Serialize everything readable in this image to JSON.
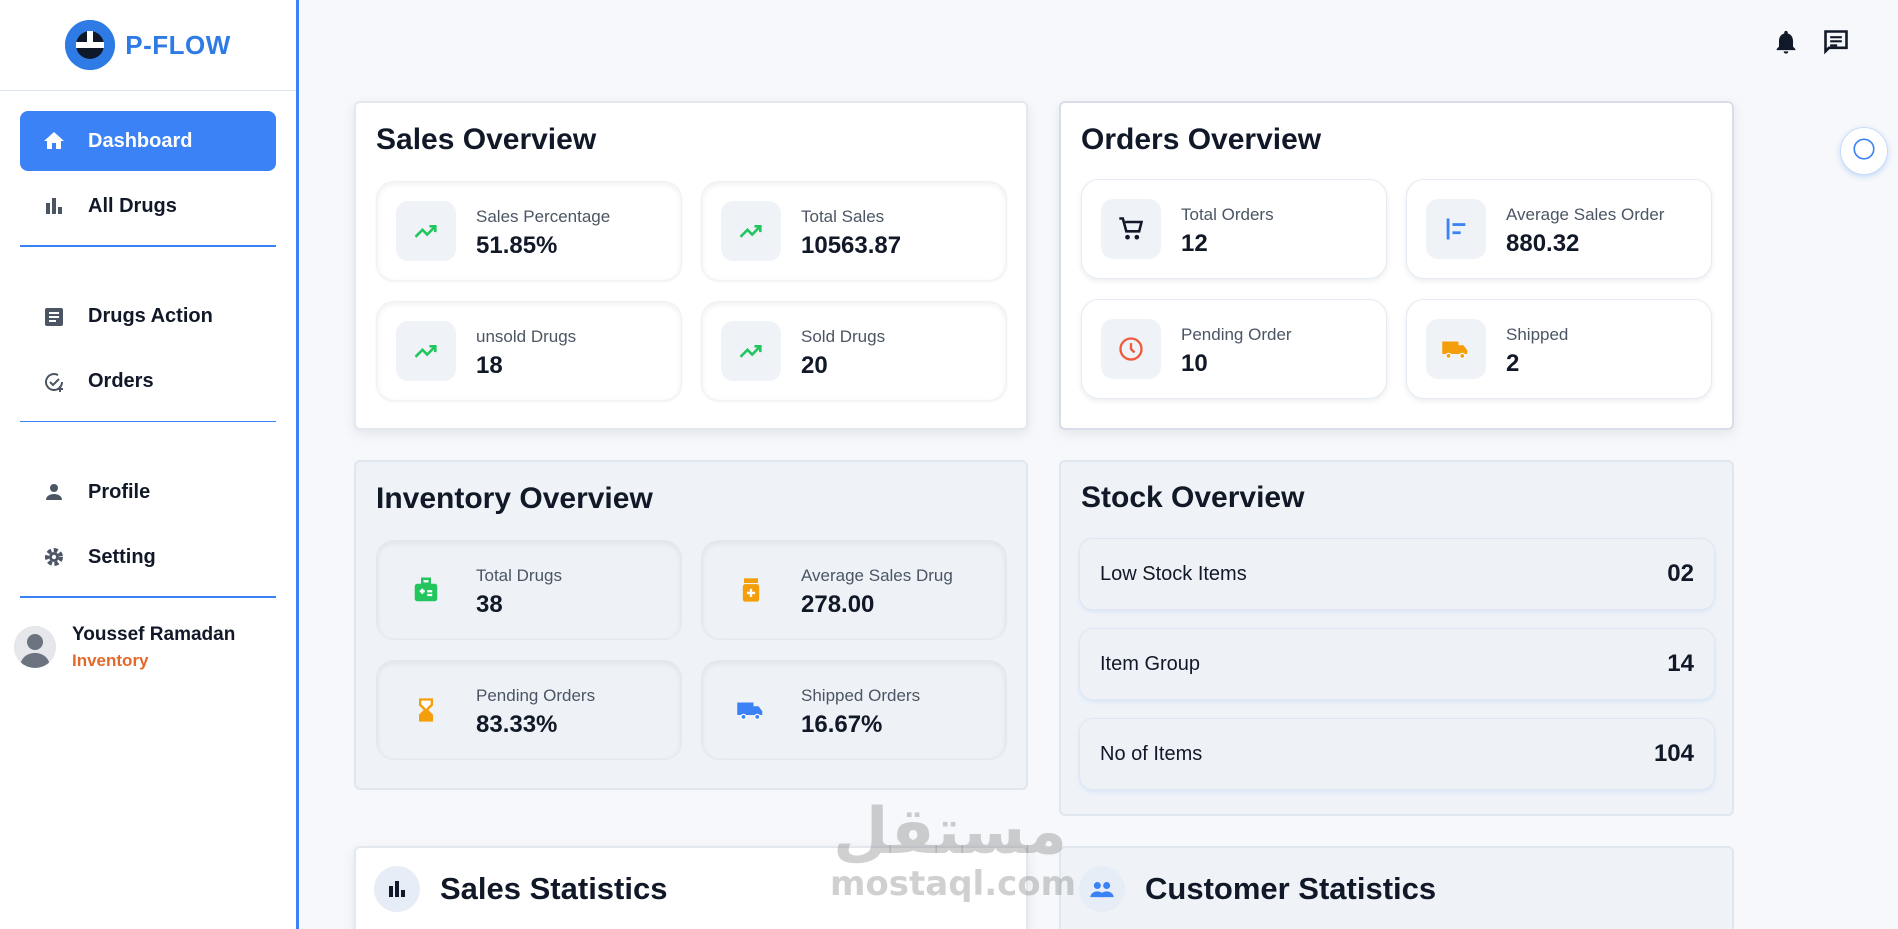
{
  "brand": {
    "name": "P-FLOW",
    "color": "#2f7be6"
  },
  "sidebar": {
    "items": [
      {
        "label": "Dashboard",
        "icon": "home-icon",
        "active": true
      },
      {
        "label": "All Drugs",
        "icon": "bar-chart-icon"
      },
      {
        "label": "Drugs Action",
        "icon": "document-icon"
      },
      {
        "label": "Orders",
        "icon": "check-circle-icon"
      },
      {
        "label": "Profile",
        "icon": "person-icon"
      },
      {
        "label": "Setting",
        "icon": "gear-icon"
      }
    ],
    "user": {
      "name": "Youssef Ramadan",
      "role": "Inventory"
    }
  },
  "header": {
    "icons": [
      "bell-icon",
      "chat-icon"
    ],
    "theme_toggle": "moon-icon"
  },
  "sales_overview": {
    "title": "Sales Overview",
    "cards": [
      {
        "label": "Sales Percentage",
        "value": "51.85%",
        "icon": "trending-up-icon"
      },
      {
        "label": "Total Sales",
        "value": "10563.87",
        "icon": "trending-up-icon"
      },
      {
        "label": "unsold Drugs",
        "value": "18",
        "icon": "trending-up-icon"
      },
      {
        "label": "Sold Drugs",
        "value": "20",
        "icon": "trending-up-icon"
      }
    ]
  },
  "orders_overview": {
    "title": "Orders Overview",
    "cards": [
      {
        "label": "Total Orders",
        "value": "12",
        "icon": "cart-icon"
      },
      {
        "label": "Average Sales Order",
        "value": "880.32",
        "icon": "align-left-icon"
      },
      {
        "label": "Pending Order",
        "value": "10",
        "icon": "clock-icon"
      },
      {
        "label": "Shipped",
        "value": "2",
        "icon": "truck-icon"
      }
    ]
  },
  "inventory_overview": {
    "title": "Inventory Overview",
    "cards": [
      {
        "label": "Total Drugs",
        "value": "38",
        "icon": "medkit-icon"
      },
      {
        "label": "Average Sales Drug",
        "value": "278.00",
        "icon": "pill-bottle-icon"
      },
      {
        "label": "Pending Orders",
        "value": "83.33%",
        "icon": "hourglass-icon"
      },
      {
        "label": "Shipped Orders",
        "value": "16.67%",
        "icon": "truck-icon"
      }
    ]
  },
  "stock_overview": {
    "title": "Stock Overview",
    "rows": [
      {
        "label": "Low Stock Items",
        "value": "02"
      },
      {
        "label": "Item Group",
        "value": "14"
      },
      {
        "label": "No of Items",
        "value": "104"
      }
    ]
  },
  "sales_statistics": {
    "title": "Sales Statistics",
    "icon": "bar-chart-icon"
  },
  "customer_statistics": {
    "title": "Customer Statistics",
    "icon": "people-icon"
  },
  "watermark": {
    "arabic": "مستقل",
    "latin": "mostaql.com"
  },
  "colors": {
    "accent": "#3b82f6",
    "green": "#22c55e",
    "orange": "#f59e0b",
    "red_orange": "#e2692b"
  }
}
